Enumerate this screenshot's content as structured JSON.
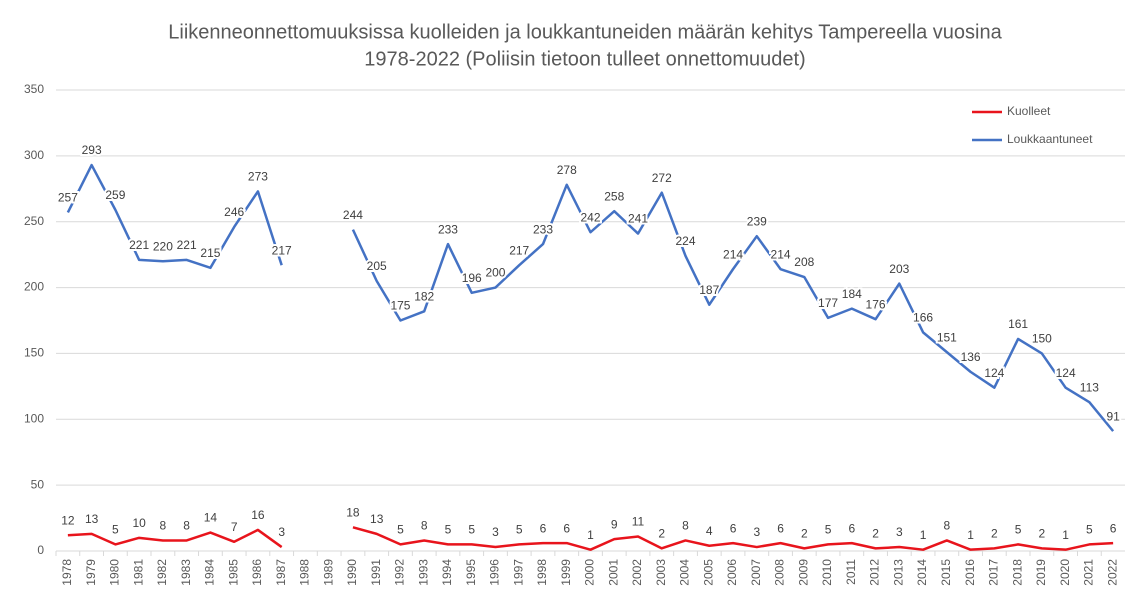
{
  "chart_data": {
    "type": "line",
    "title": [
      "Liikenneonnettomuuksissa kuolleiden ja loukkantuneiden määrän kehitys Tampereella vuosina",
      "1978-2022 (Poliisin tietoon tulleet onnettomuudet)"
    ],
    "categories": [
      "1978",
      "1979",
      "1980",
      "1981",
      "1982",
      "1983",
      "1984",
      "1985",
      "1986",
      "1987",
      "1988",
      "1989",
      "1990",
      "1991",
      "1992",
      "1993",
      "1994",
      "1995",
      "1996",
      "1997",
      "1998",
      "1999",
      "2000",
      "2001",
      "2002",
      "2003",
      "2004",
      "2005",
      "2006",
      "2007",
      "2008",
      "2009",
      "2010",
      "2011",
      "2012",
      "2013",
      "2014",
      "2015",
      "2016",
      "2017",
      "2018",
      "2019",
      "2020",
      "2021",
      "2022"
    ],
    "series": [
      {
        "name": "Kuolleet",
        "color": "#e8141c",
        "values": [
          12,
          13,
          5,
          10,
          8,
          8,
          14,
          7,
          16,
          3,
          null,
          null,
          18,
          13,
          5,
          8,
          5,
          5,
          3,
          5,
          6,
          6,
          1,
          9,
          11,
          2,
          8,
          4,
          6,
          3,
          6,
          2,
          5,
          6,
          2,
          3,
          1,
          8,
          1,
          2,
          5,
          2,
          1,
          5,
          6
        ]
      },
      {
        "name": "Loukkaantuneet",
        "color": "#4472c4",
        "values": [
          257,
          293,
          259,
          221,
          220,
          221,
          215,
          246,
          273,
          217,
          null,
          null,
          244,
          205,
          175,
          182,
          233,
          196,
          200,
          217,
          233,
          278,
          242,
          258,
          241,
          272,
          224,
          187,
          214,
          239,
          214,
          208,
          177,
          184,
          176,
          203,
          166,
          151,
          136,
          124,
          161,
          150,
          124,
          113,
          91
        ]
      }
    ],
    "ylim": [
      0,
      350
    ],
    "yticks": [
      0,
      50,
      100,
      150,
      200,
      250,
      300,
      350
    ],
    "grid": true,
    "legend": "top-right"
  }
}
